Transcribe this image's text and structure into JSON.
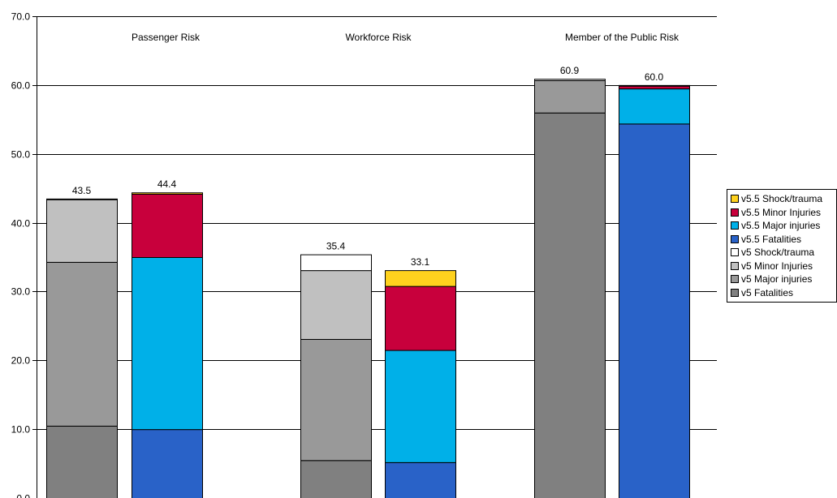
{
  "chart_data": {
    "type": "bar",
    "stacked": true,
    "ylim": [
      0,
      70
    ],
    "yticks": [
      0,
      10,
      20,
      30,
      40,
      50,
      60,
      70
    ],
    "ytick_labels": [
      "0.0",
      "10.0",
      "20.0",
      "30.0",
      "40.0",
      "50.0",
      "60.0",
      "70.0"
    ],
    "grid": true,
    "legend_position": "right",
    "groups": [
      {
        "label": "Passenger Risk",
        "bars": [
          {
            "version": "v5",
            "total_label": "43.5",
            "segments": [
              10.5,
              23.8,
              9.1,
              0.1
            ]
          },
          {
            "version": "v5.5",
            "total_label": "44.4",
            "segments": [
              10.0,
              25.0,
              9.2,
              0.2
            ]
          }
        ]
      },
      {
        "label": "Workforce Risk",
        "bars": [
          {
            "version": "v5",
            "total_label": "35.4",
            "segments": [
              5.5,
              17.6,
              10.0,
              2.3
            ]
          },
          {
            "version": "v5.5",
            "total_label": "33.1",
            "segments": [
              5.2,
              16.3,
              9.3,
              2.3
            ]
          }
        ]
      },
      {
        "label": "Member of the Public Risk",
        "bars": [
          {
            "version": "v5",
            "total_label": "60.9",
            "segments": [
              56.0,
              4.7,
              0.0,
              0.2
            ]
          },
          {
            "version": "v5.5",
            "total_label": "60.0",
            "segments": [
              54.4,
              5.1,
              0.4,
              0.1
            ]
          }
        ]
      }
    ],
    "segment_names": {
      "v5": [
        "v5 Fatalities",
        "v5 Major injuries",
        "v5 Minor Injuries",
        "v5 Shock/trauma"
      ],
      "v5.5": [
        "v5.5 Fatalities",
        "v5.5 Major injuries",
        "v5.5 Minor Injuries",
        "v5.5 Shock/trauma"
      ]
    },
    "colors": {
      "v5": [
        "#808080",
        "#999999",
        "#c0c0c0",
        "#ffffff"
      ],
      "v5.5": [
        "#2962c8",
        "#00b0e8",
        "#c8003c",
        "#ffd21e"
      ]
    },
    "legend": [
      {
        "name": "v5.5 Shock/trauma",
        "color": "#ffd21e"
      },
      {
        "name": "v5.5 Minor Injuries",
        "color": "#c8003c"
      },
      {
        "name": "v5.5 Major injuries",
        "color": "#00b0e8"
      },
      {
        "name": "v5.5 Fatalities",
        "color": "#2962c8"
      },
      {
        "name": "v5 Shock/trauma",
        "color": "#ffffff"
      },
      {
        "name": "v5 Minor Injuries",
        "color": "#c0c0c0"
      },
      {
        "name": "v5 Major injuries",
        "color": "#999999"
      },
      {
        "name": "v5 Fatalities",
        "color": "#808080"
      }
    ]
  }
}
